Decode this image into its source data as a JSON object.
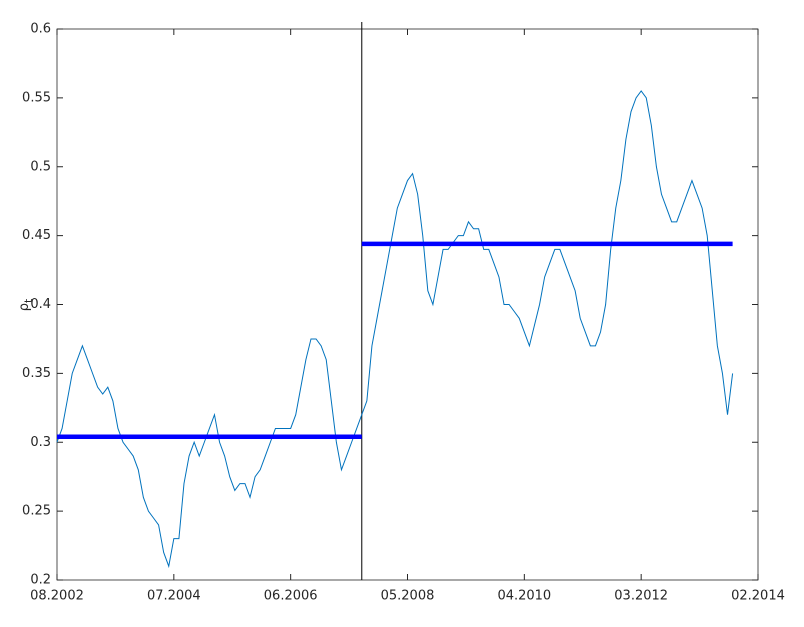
{
  "chart_data": {
    "type": "line",
    "ylabel": {
      "symbol": "ρ",
      "subscript": "t"
    },
    "x": [
      "2002-08",
      "2002-09",
      "2002-10",
      "2002-11",
      "2002-12",
      "2003-01",
      "2003-02",
      "2003-03",
      "2003-04",
      "2003-05",
      "2003-06",
      "2003-07",
      "2003-08",
      "2003-09",
      "2003-10",
      "2003-11",
      "2003-12",
      "2004-01",
      "2004-02",
      "2004-03",
      "2004-04",
      "2004-05",
      "2004-06",
      "2004-07",
      "2004-08",
      "2004-09",
      "2004-10",
      "2004-11",
      "2004-12",
      "2005-01",
      "2005-02",
      "2005-03",
      "2005-04",
      "2005-05",
      "2005-06",
      "2005-07",
      "2005-08",
      "2005-09",
      "2005-10",
      "2005-11",
      "2005-12",
      "2006-01",
      "2006-02",
      "2006-03",
      "2006-04",
      "2006-05",
      "2006-06",
      "2006-07",
      "2006-08",
      "2006-09",
      "2006-10",
      "2006-11",
      "2006-12",
      "2007-01",
      "2007-02",
      "2007-03",
      "2007-04",
      "2007-05",
      "2007-06",
      "2007-07",
      "2007-08",
      "2007-09",
      "2007-10",
      "2007-11",
      "2007-12",
      "2008-01",
      "2008-02",
      "2008-03",
      "2008-04",
      "2008-05",
      "2008-06",
      "2008-07",
      "2008-08",
      "2008-09",
      "2008-10",
      "2008-11",
      "2008-12",
      "2009-01",
      "2009-02",
      "2009-03",
      "2009-04",
      "2009-05",
      "2009-06",
      "2009-07",
      "2009-08",
      "2009-09",
      "2009-10",
      "2009-11",
      "2009-12",
      "2010-01",
      "2010-02",
      "2010-03",
      "2010-04",
      "2010-05",
      "2010-06",
      "2010-07",
      "2010-08",
      "2010-09",
      "2010-10",
      "2010-11",
      "2010-12",
      "2011-01",
      "2011-02",
      "2011-03",
      "2011-04",
      "2011-05",
      "2011-06",
      "2011-07",
      "2011-08",
      "2011-09",
      "2011-10",
      "2011-11",
      "2011-12",
      "2012-01",
      "2012-02",
      "2012-03",
      "2012-04",
      "2012-05",
      "2012-06",
      "2012-07",
      "2012-08",
      "2012-09",
      "2012-10",
      "2012-11",
      "2012-12",
      "2013-01",
      "2013-02",
      "2013-03",
      "2013-04",
      "2013-05",
      "2013-06",
      "2013-07",
      "2013-08",
      "2013-09"
    ],
    "series": [
      {
        "color": "#0072bd",
        "values": [
          0.3,
          0.31,
          0.33,
          0.35,
          0.36,
          0.37,
          0.36,
          0.35,
          0.34,
          0.335,
          0.34,
          0.33,
          0.31,
          0.3,
          0.295,
          0.29,
          0.28,
          0.26,
          0.25,
          0.245,
          0.24,
          0.22,
          0.21,
          0.23,
          0.23,
          0.27,
          0.29,
          0.3,
          0.29,
          0.3,
          0.31,
          0.32,
          0.3,
          0.29,
          0.275,
          0.265,
          0.27,
          0.27,
          0.26,
          0.275,
          0.28,
          0.29,
          0.3,
          0.31,
          0.31,
          0.31,
          0.31,
          0.32,
          0.34,
          0.36,
          0.375,
          0.375,
          0.37,
          0.36,
          0.33,
          0.3,
          0.28,
          0.29,
          0.3,
          0.31,
          0.32,
          0.33,
          0.37,
          0.39,
          0.41,
          0.43,
          0.45,
          0.47,
          0.48,
          0.49,
          0.495,
          0.48,
          0.45,
          0.41,
          0.4,
          0.42,
          0.44,
          0.44,
          0.445,
          0.45,
          0.45,
          0.46,
          0.455,
          0.455,
          0.44,
          0.44,
          0.43,
          0.42,
          0.4,
          0.4,
          0.395,
          0.39,
          0.38,
          0.37,
          0.385,
          0.4,
          0.42,
          0.43,
          0.44,
          0.44,
          0.43,
          0.42,
          0.41,
          0.39,
          0.38,
          0.37,
          0.37,
          0.38,
          0.4,
          0.44,
          0.47,
          0.49,
          0.52,
          0.54,
          0.55,
          0.555,
          0.55,
          0.53,
          0.5,
          0.48,
          0.47,
          0.46,
          0.46,
          0.47,
          0.48,
          0.49,
          0.48,
          0.47,
          0.45,
          0.41,
          0.37,
          0.35,
          0.32,
          0.35
        ]
      }
    ],
    "segments": [
      {
        "color": "#0000ff",
        "x": [
          "2002-08",
          "2007-08"
        ],
        "value": 0.304
      },
      {
        "color": "#0000ff",
        "x": [
          "2007-08",
          "2013-09"
        ],
        "value": 0.444
      }
    ],
    "breakpoint": "2007-08",
    "xlim": [
      "2002-08",
      "2014-02"
    ],
    "xticks": [
      {
        "value": "2002-08",
        "label": "08.2002"
      },
      {
        "value": "2004-07",
        "label": "07.2004"
      },
      {
        "value": "2006-06",
        "label": "06.2006"
      },
      {
        "value": "2008-05",
        "label": "05.2008"
      },
      {
        "value": "2010-04",
        "label": "04.2010"
      },
      {
        "value": "2012-03",
        "label": "03.2012"
      },
      {
        "value": "2014-02",
        "label": "02.2014"
      }
    ],
    "ylim": [
      0.2,
      0.6
    ],
    "yticks": [
      0.2,
      0.25,
      0.3,
      0.35,
      0.4,
      0.45,
      0.5,
      0.55,
      0.6
    ],
    "grid": false
  }
}
